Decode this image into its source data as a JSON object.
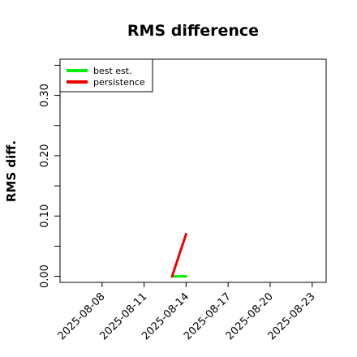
{
  "chart_data": {
    "type": "line",
    "title": "RMS difference",
    "xlabel": "",
    "ylabel": "RMS diff.",
    "ylim": [
      -0.01,
      0.36
    ],
    "xlim": [
      "2025-08-05",
      "2025-08-24"
    ],
    "yticks": [
      "0.00",
      "0.10",
      "0.20",
      "0.30"
    ],
    "xticks": [
      "2025-08-08",
      "2025-08-11",
      "2025-08-14",
      "2025-08-17",
      "2025-08-20",
      "2025-08-23"
    ],
    "legend_position": "top-left",
    "grid": false,
    "series": [
      {
        "name": "best est.",
        "color": "#00ee00",
        "points": [
          {
            "x": "2025-08-13",
            "y": 0.0
          },
          {
            "x": "2025-08-14",
            "y": 0.0
          }
        ]
      },
      {
        "name": "persistence",
        "color": "#ee0000",
        "points": [
          {
            "x": "2025-08-13",
            "y": 0.0
          },
          {
            "x": "2025-08-14",
            "y": 0.07
          }
        ]
      }
    ],
    "baseline": {
      "color": "#555555",
      "points": [
        {
          "x": "2025-08-13",
          "y": 0.0
        },
        {
          "x": "2025-08-14",
          "y": 0.0
        }
      ]
    }
  }
}
